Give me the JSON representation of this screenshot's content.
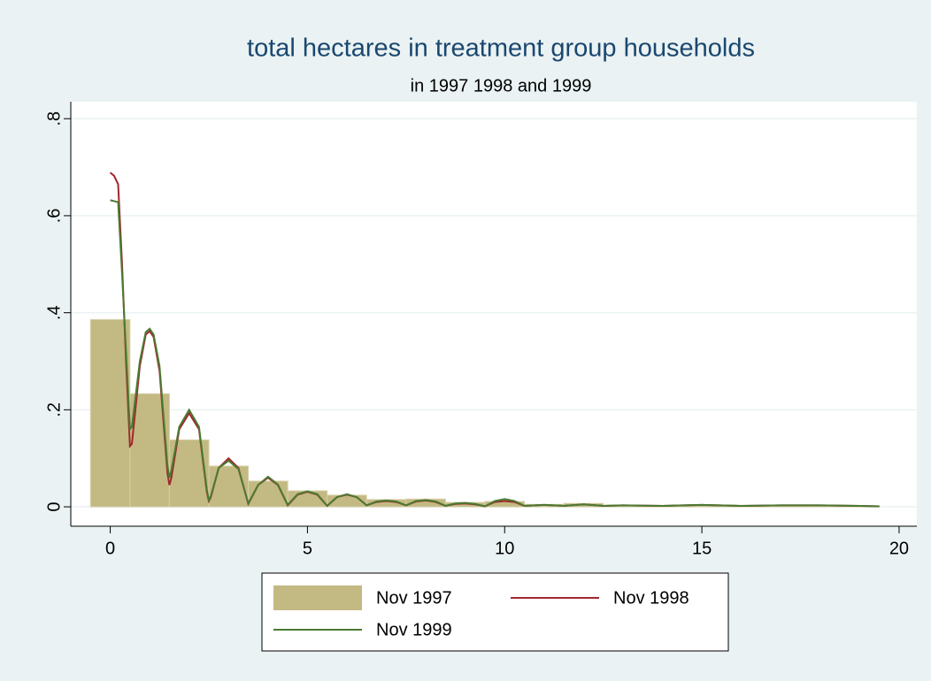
{
  "chart_data": {
    "type": "histogram_lines",
    "title": "total hectares in treatment group households",
    "subtitle": "in 1997 1998 and 1999",
    "bins": [
      -0.5,
      0.5,
      1.5,
      2.5,
      3.5,
      4.5,
      5.5,
      6.5,
      7.5,
      8.5,
      9.5,
      10.5,
      11.5,
      12.5,
      13.5,
      14.5,
      15.5,
      16.5,
      17.5,
      18.5,
      19.5
    ],
    "histogram": {
      "name": "Nov 1997",
      "color": "#c3b982",
      "values": [
        0.386,
        0.233,
        0.138,
        0.084,
        0.053,
        0.033,
        0.024,
        0.015,
        0.016,
        0.009,
        0.011,
        0.005,
        0.007,
        0.003,
        0.002,
        0.003,
        0.002,
        0.002,
        0.002,
        0.001
      ]
    },
    "x": [
      0,
      0.1,
      0.2,
      0.3,
      0.4,
      0.5,
      0.55,
      0.75,
      0.9,
      1,
      1.1,
      1.25,
      1.45,
      1.5,
      1.55,
      1.75,
      2,
      2.25,
      2.45,
      2.5,
      2.55,
      2.75,
      3,
      3.25,
      3.5,
      3.75,
      4,
      4.25,
      4.5,
      4.75,
      5,
      5.25,
      5.5,
      5.75,
      6,
      6.25,
      6.5,
      6.75,
      7,
      7.25,
      7.5,
      7.75,
      8,
      8.25,
      8.5,
      8.75,
      9,
      9.25,
      9.5,
      9.75,
      10,
      10.25,
      10.5,
      11,
      11.5,
      12,
      12.5,
      13,
      14,
      15,
      16,
      17,
      18,
      19,
      19.5
    ],
    "series": [
      {
        "name": "Nov 1998",
        "color": "#a0282d",
        "values": [
          0.689,
          0.682,
          0.665,
          0.5,
          0.3,
          0.125,
          0.13,
          0.29,
          0.355,
          0.362,
          0.35,
          0.28,
          0.07,
          0.045,
          0.06,
          0.16,
          0.193,
          0.16,
          0.03,
          0.012,
          0.02,
          0.08,
          0.1,
          0.08,
          0.006,
          0.045,
          0.06,
          0.045,
          0.003,
          0.025,
          0.031,
          0.025,
          0.002,
          0.02,
          0.025,
          0.02,
          0.003,
          0.01,
          0.012,
          0.01,
          0.003,
          0.011,
          0.013,
          0.01,
          0.002,
          0.006,
          0.007,
          0.005,
          0.001,
          0.01,
          0.012,
          0.01,
          0.002,
          0.004,
          0.002,
          0.005,
          0.002,
          0.003,
          0.002,
          0.004,
          0.002,
          0.003,
          0.003,
          0.002,
          0.001
        ]
      },
      {
        "name": "Nov 1999",
        "color": "#4b7a32",
        "values": [
          0.632,
          0.63,
          0.628,
          0.48,
          0.32,
          0.16,
          0.165,
          0.3,
          0.36,
          0.367,
          0.355,
          0.29,
          0.085,
          0.06,
          0.075,
          0.165,
          0.2,
          0.165,
          0.035,
          0.014,
          0.022,
          0.08,
          0.095,
          0.078,
          0.007,
          0.045,
          0.062,
          0.046,
          0.004,
          0.026,
          0.032,
          0.026,
          0.002,
          0.02,
          0.026,
          0.02,
          0.003,
          0.011,
          0.013,
          0.011,
          0.003,
          0.012,
          0.014,
          0.011,
          0.002,
          0.007,
          0.008,
          0.006,
          0.001,
          0.012,
          0.016,
          0.012,
          0.002,
          0.004,
          0.002,
          0.005,
          0.002,
          0.003,
          0.002,
          0.004,
          0.002,
          0.003,
          0.003,
          0.002,
          0.001
        ]
      }
    ],
    "xlim": [
      -1,
      20.45
    ],
    "xticks": [
      0,
      5,
      10,
      15,
      20
    ],
    "ylim": [
      -0.04,
      0.835
    ],
    "yticks": [
      0,
      {
        "value": 0.2,
        "label": ".2"
      },
      {
        "value": 0.4,
        "label": ".4"
      },
      {
        "value": 0.6,
        "label": ".6"
      },
      {
        "value": 0.8,
        "label": ".8"
      }
    ],
    "grid": true
  }
}
